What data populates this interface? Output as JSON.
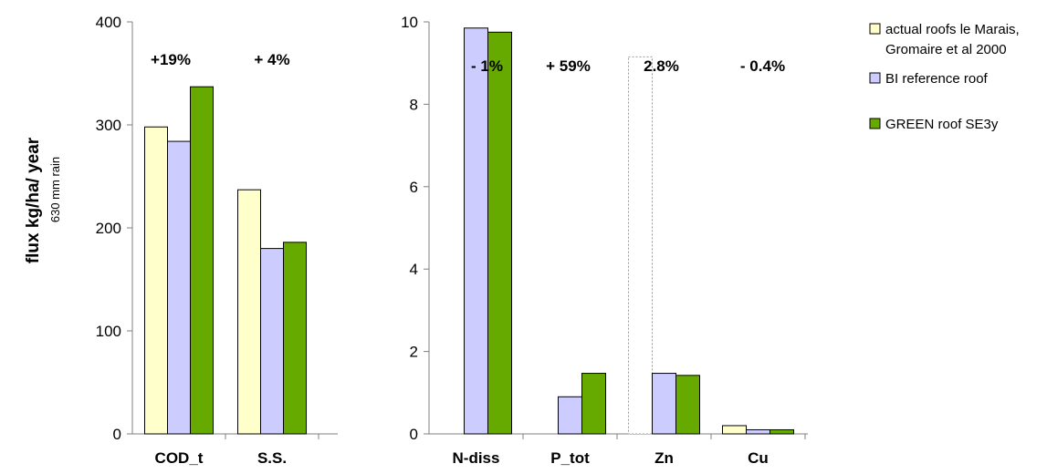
{
  "colors": {
    "series": [
      "#FFFFCC",
      "#CCCCFF",
      "#66AA00"
    ],
    "axis": "#808080",
    "bar_stroke": "#000000",
    "ghost_stroke": "#999999"
  },
  "y_axis_label": {
    "title": "flux kg/ha/ year",
    "subtitle": "630 mm rain"
  },
  "legend": {
    "position": "top-right",
    "items": [
      {
        "lines": [
          "actual roofs le Marais,",
          "Gromaire et al 2000"
        ],
        "color": "#FFFFCC"
      },
      {
        "lines": [
          "BI reference roof"
        ],
        "color": "#CCCCFF"
      },
      {
        "lines": [
          "GREEN roof SE3y"
        ],
        "color": "#66AA00"
      }
    ]
  },
  "chart_data": [
    {
      "type": "bar",
      "categories": [
        "COD_t",
        "S.S."
      ],
      "series": [
        {
          "name": "actual roofs le Marais, Gromaire et al 2000",
          "values": [
            298,
            237
          ]
        },
        {
          "name": "BI reference roof",
          "values": [
            284,
            180
          ]
        },
        {
          "name": "GREEN roof SE3y",
          "values": [
            337,
            186
          ]
        }
      ],
      "ylim": [
        0,
        400
      ],
      "yticks": [
        "0",
        "100",
        "200",
        "300",
        "400"
      ],
      "annotations": [
        "+19%",
        "+ 4%"
      ],
      "grid": false
    },
    {
      "type": "bar",
      "categories": [
        "N-diss",
        "P_tot",
        "Zn",
        "Cu"
      ],
      "series": [
        {
          "name": "actual roofs le Marais, Gromaire et al 2000",
          "values": [
            null,
            null,
            9.15,
            0.2
          ]
        },
        {
          "name": "BI reference roof",
          "values": [
            9.85,
            0.9,
            1.47,
            0.1
          ]
        },
        {
          "name": "GREEN roof SE3y",
          "values": [
            9.75,
            1.47,
            1.42,
            0.1
          ]
        }
      ],
      "ylim": [
        0,
        10
      ],
      "yticks": [
        "0",
        "2",
        "4",
        "6",
        "8",
        "10"
      ],
      "annotations": [
        "- 1%",
        "+ 59%",
        "2.8%",
        "- 0.4%"
      ],
      "outlined_bars": [
        {
          "category": "Zn",
          "series": 0,
          "style": "dotted-outline"
        }
      ],
      "grid": false
    }
  ]
}
